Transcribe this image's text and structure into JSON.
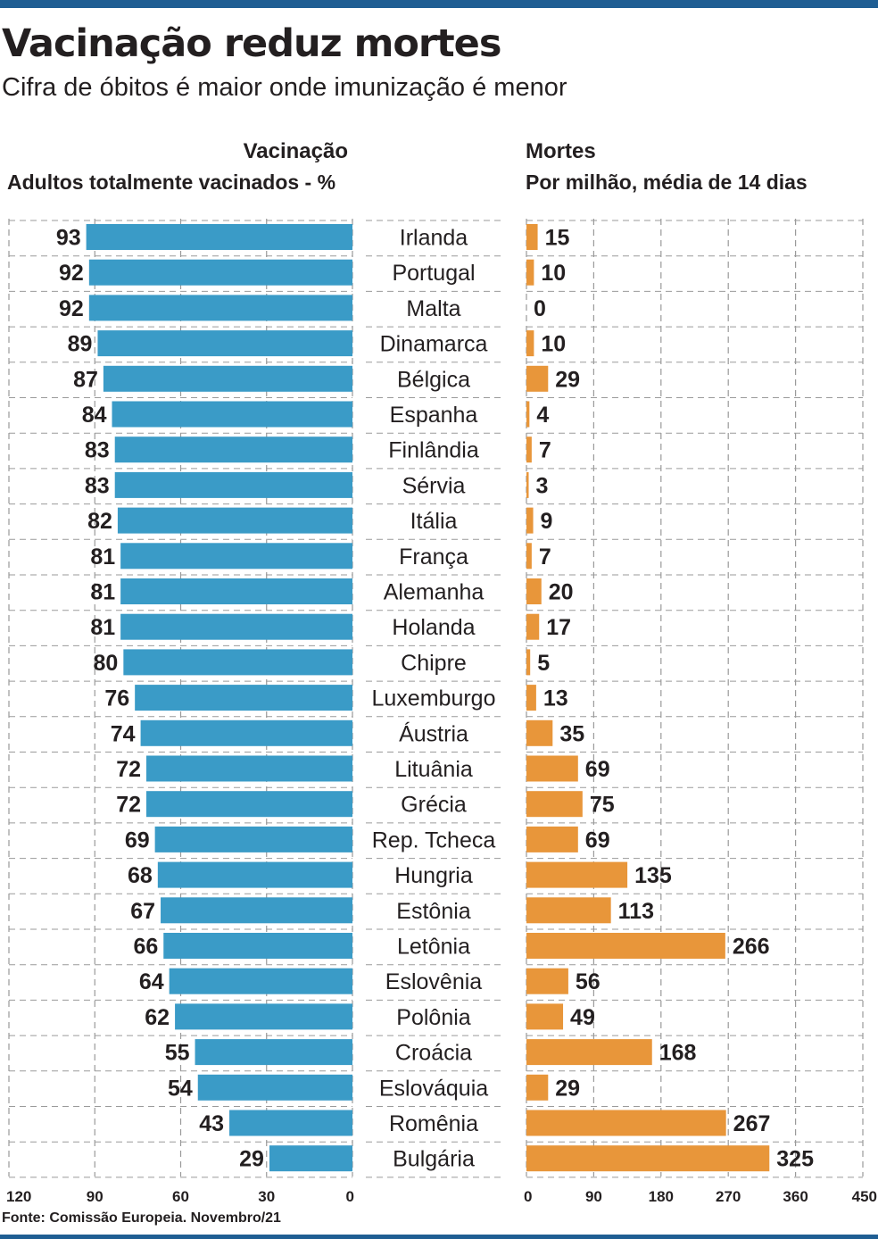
{
  "header": {
    "title": "Vacinação reduz mortes",
    "subtitle": "Cifra de óbitos é maior onde imunização é menor"
  },
  "left_panel": {
    "title": "Vacinação",
    "subtitle": "Adultos totalmente vacinados - %"
  },
  "right_panel": {
    "title": "Mortes",
    "subtitle": "Por milhão, média de 14 dias"
  },
  "footer": {
    "source": "Fonte: Comissão Europeia. Novembro/21"
  },
  "colors": {
    "vaccination_bar": "#3a9bc7",
    "deaths_bar": "#e8963a",
    "grid": "#9a9a9a",
    "accent_rule": "#1f5e93"
  },
  "chart_data": [
    {
      "type": "bar",
      "orientation": "horizontal",
      "direction": "right-to-left",
      "title": "Vacinação",
      "subtitle": "Adultos totalmente vacinados - %",
      "categories": [
        "Irlanda",
        "Portugal",
        "Malta",
        "Dinamarca",
        "Bélgica",
        "Espanha",
        "Finlândia",
        "Sérvia",
        "Itália",
        "França",
        "Alemanha",
        "Holanda",
        "Chipre",
        "Luxemburgo",
        "Áustria",
        "Lituânia",
        "Grécia",
        "Rep. Tcheca",
        "Hungria",
        "Estônia",
        "Letônia",
        "Eslovênia",
        "Polônia",
        "Croácia",
        "Eslováquia",
        "Romênia",
        "Bulgária"
      ],
      "values": [
        93,
        92,
        92,
        89,
        87,
        84,
        83,
        83,
        82,
        81,
        81,
        81,
        80,
        76,
        74,
        72,
        72,
        69,
        68,
        67,
        66,
        64,
        62,
        55,
        54,
        43,
        29
      ],
      "xlim": [
        0,
        120
      ],
      "xticks": [
        0,
        30,
        60,
        90,
        120
      ],
      "grid": true
    },
    {
      "type": "bar",
      "orientation": "horizontal",
      "title": "Mortes",
      "subtitle": "Por milhão, média de 14 dias",
      "categories": [
        "Irlanda",
        "Portugal",
        "Malta",
        "Dinamarca",
        "Bélgica",
        "Espanha",
        "Finlândia",
        "Sérvia",
        "Itália",
        "França",
        "Alemanha",
        "Holanda",
        "Chipre",
        "Luxemburgo",
        "Áustria",
        "Lituânia",
        "Grécia",
        "Rep. Tcheca",
        "Hungria",
        "Estônia",
        "Letônia",
        "Eslovênia",
        "Polônia",
        "Croácia",
        "Eslováquia",
        "Romênia",
        "Bulgária"
      ],
      "values": [
        15,
        10,
        0,
        10,
        29,
        4,
        7,
        3,
        9,
        7,
        20,
        17,
        5,
        13,
        35,
        69,
        75,
        69,
        135,
        113,
        266,
        56,
        49,
        168,
        29,
        267,
        325
      ],
      "xlim": [
        0,
        450
      ],
      "xticks": [
        0,
        90,
        180,
        270,
        360,
        450
      ],
      "grid": true
    }
  ]
}
